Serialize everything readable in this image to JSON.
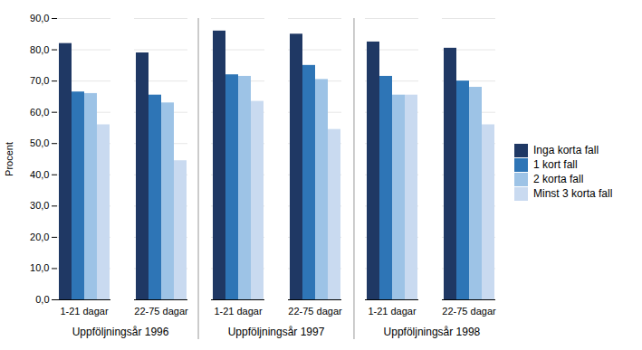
{
  "chart_data": {
    "type": "bar",
    "y_label": "Procent",
    "categories": [
      "1-21 dagar",
      "22-75 dagar",
      "1-21 dagar",
      "22-75 dagar",
      "1-21 dagar",
      "22-75 dagar"
    ],
    "series": [
      {
        "name": "Inga korta fall",
        "color": "#1F3864",
        "values": [
          82.0,
          79.0,
          86.0,
          85.0,
          82.5,
          80.5
        ]
      },
      {
        "name": "1 kort fall",
        "color": "#2E75B6",
        "values": [
          66.5,
          65.5,
          72.0,
          75.0,
          71.5,
          70.0
        ]
      },
      {
        "name": "2 korta fall",
        "color": "#9DC3E6",
        "values": [
          66.0,
          63.0,
          71.5,
          70.5,
          65.5,
          68.0
        ]
      },
      {
        "name": "Minst 3 korta fall",
        "color": "#C9DAF0",
        "values": [
          56.0,
          44.5,
          63.5,
          54.5,
          65.5,
          56.0
        ]
      }
    ],
    "annotations": [
      "Uppföljningsår 1996",
      "Uppföljningsår 1997",
      "Uppföljningsår 1998"
    ],
    "ylim": [
      0,
      90
    ],
    "yticks": [
      {
        "value": 0,
        "label": "0,0"
      },
      {
        "value": 10,
        "label": "10,0"
      },
      {
        "value": 20,
        "label": "20,0"
      },
      {
        "value": 30,
        "label": "30,0"
      },
      {
        "value": 40,
        "label": "40,0"
      },
      {
        "value": 50,
        "label": "50,0"
      },
      {
        "value": 60,
        "label": "60,0"
      },
      {
        "value": 70,
        "label": "70,0"
      },
      {
        "value": 80,
        "label": "80,0"
      },
      {
        "value": 90,
        "label": "90,0"
      }
    ],
    "grid": true,
    "legend": "right"
  }
}
